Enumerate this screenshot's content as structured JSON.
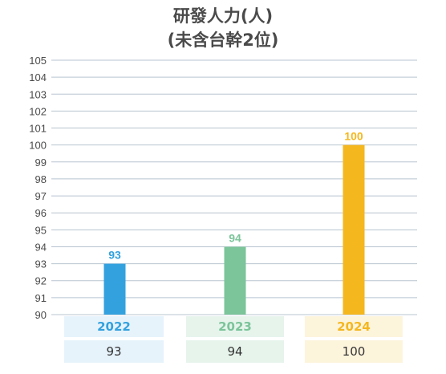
{
  "title": {
    "line1": "研發人力(人)",
    "line2": "(未含台幹2位)"
  },
  "colors": {
    "text": "#4a4a4a",
    "grid": "#b8c4d0",
    "series": [
      "#33a1de",
      "#7cc49a",
      "#f4b71e"
    ],
    "cell_bg": [
      "#e6f3fb",
      "#e6f4ec",
      "#fdf4dc"
    ]
  },
  "chart_data": {
    "type": "bar",
    "categories": [
      "2022",
      "2023",
      "2024"
    ],
    "values": [
      93,
      94,
      100
    ],
    "ylim": [
      90,
      105
    ],
    "yticks": [
      90,
      91,
      92,
      93,
      94,
      95,
      96,
      97,
      98,
      99,
      100,
      101,
      102,
      103,
      104,
      105
    ],
    "grid": true,
    "data_labels": true
  },
  "table": {
    "years": [
      "2022",
      "2023",
      "2024"
    ],
    "values": [
      "93",
      "94",
      "100"
    ]
  }
}
